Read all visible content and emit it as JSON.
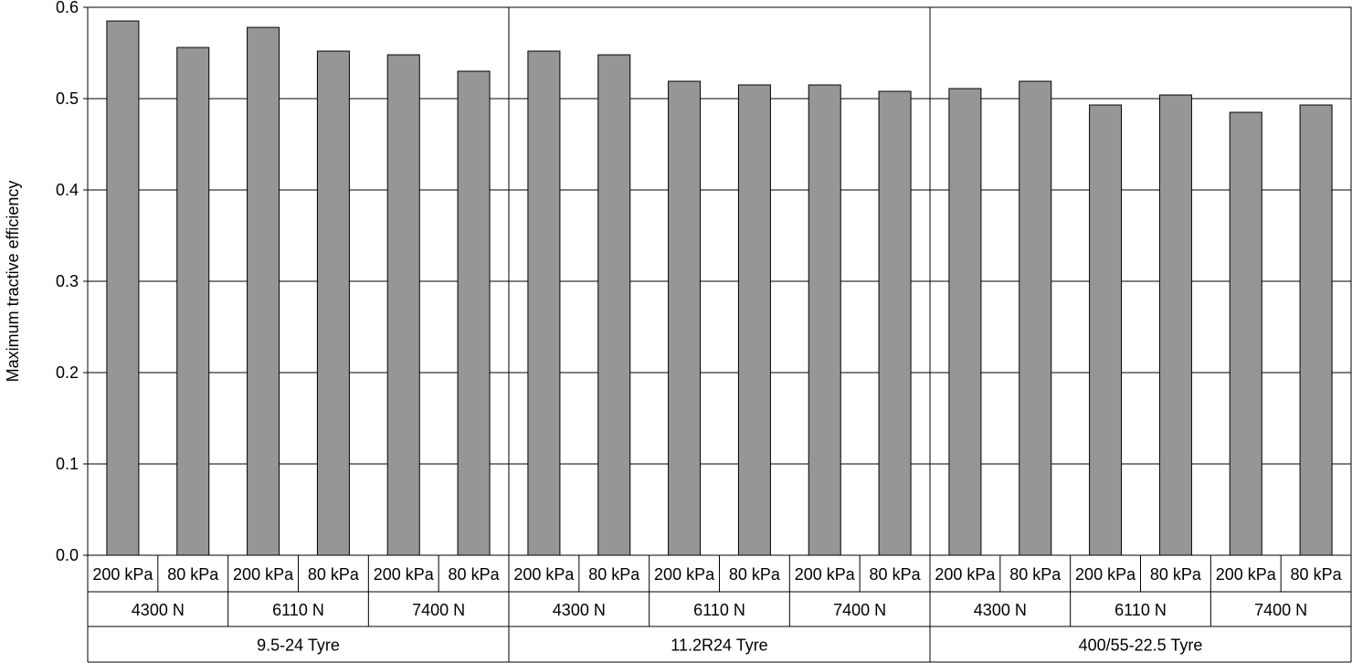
{
  "chart_data": {
    "type": "bar",
    "ylabel": "Maximum tractive efficiency",
    "ylim": [
      0,
      0.6
    ],
    "yticks": [
      "0.0",
      "0.1",
      "0.2",
      "0.3",
      "0.4",
      "0.5",
      "0.6"
    ],
    "grid": true,
    "bar_color": "#969696",
    "categories_level1": [
      "200 kPa",
      "80 kPa",
      "200 kPa",
      "80 kPa",
      "200 kPa",
      "80 kPa",
      "200 kPa",
      "80 kPa",
      "200 kPa",
      "80 kPa",
      "200 kPa",
      "80 kPa",
      "200 kPa",
      "80 kPa",
      "200 kPa",
      "80 kPa",
      "200 kPa",
      "80 kPa"
    ],
    "categories_level2": [
      "4300 N",
      "6110 N",
      "7400 N",
      "4300 N",
      "6110 N",
      "7400 N",
      "4300 N",
      "6110 N",
      "7400 N"
    ],
    "categories_level3": [
      "9.5-24 Tyre",
      "11.2R24 Tyre",
      "400/55-22.5 Tyre"
    ],
    "values": [
      0.585,
      0.556,
      0.578,
      0.552,
      0.548,
      0.53,
      0.552,
      0.548,
      0.519,
      0.515,
      0.515,
      0.508,
      0.511,
      0.519,
      0.493,
      0.504,
      0.485,
      0.493
    ]
  }
}
